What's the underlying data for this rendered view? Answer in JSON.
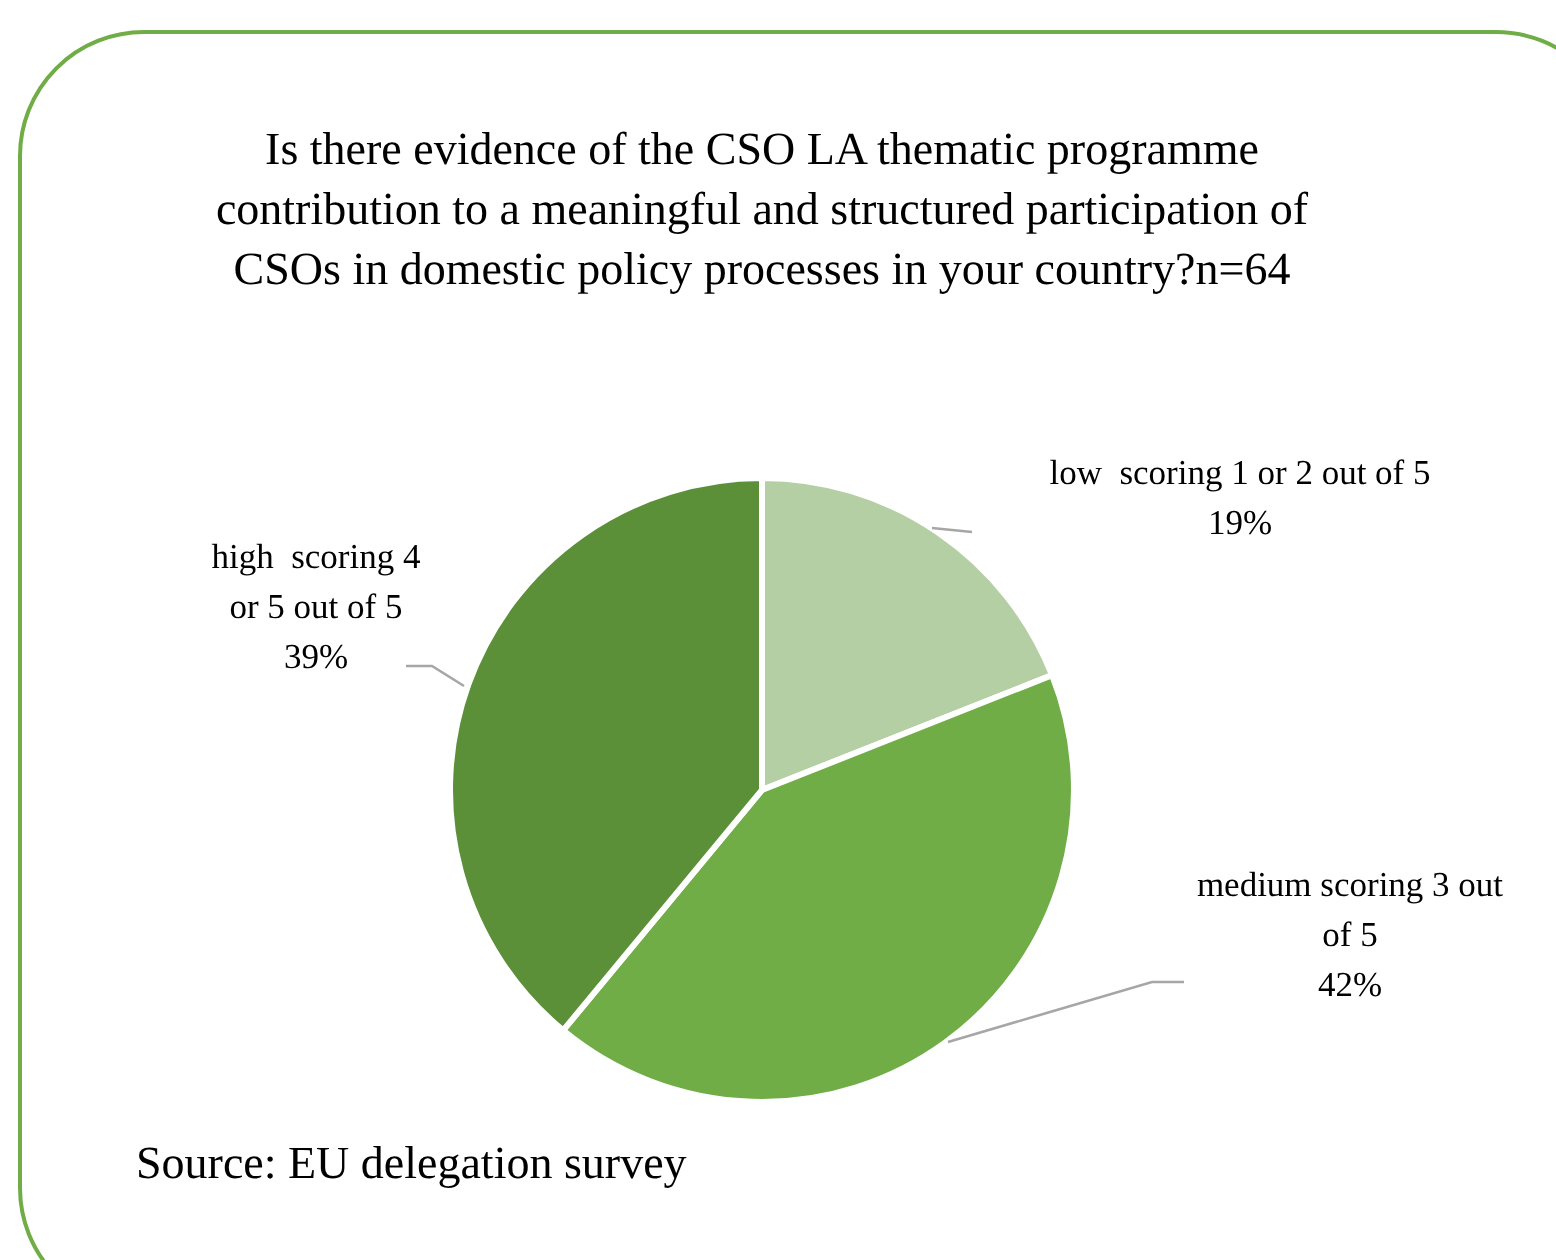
{
  "chart_data": {
    "type": "pie",
    "title": "Is there evidence of the CSO LA thematic programme contribution to a meaningful and structured participation of CSOs in domestic policy processes in your country?n=64",
    "categories": [
      "low  scoring 1 or 2 out of 5",
      "medium scoring 3 out of 5",
      "high  scoring 4 or 5 out of 5"
    ],
    "values": [
      19,
      42,
      39
    ],
    "colors": [
      "#b5cfa4",
      "#70ad47",
      "#5b9038"
    ],
    "value_labels": [
      "19%",
      "42%",
      "39%"
    ],
    "annotations": [
      "Source: EU delegation survey"
    ]
  }
}
